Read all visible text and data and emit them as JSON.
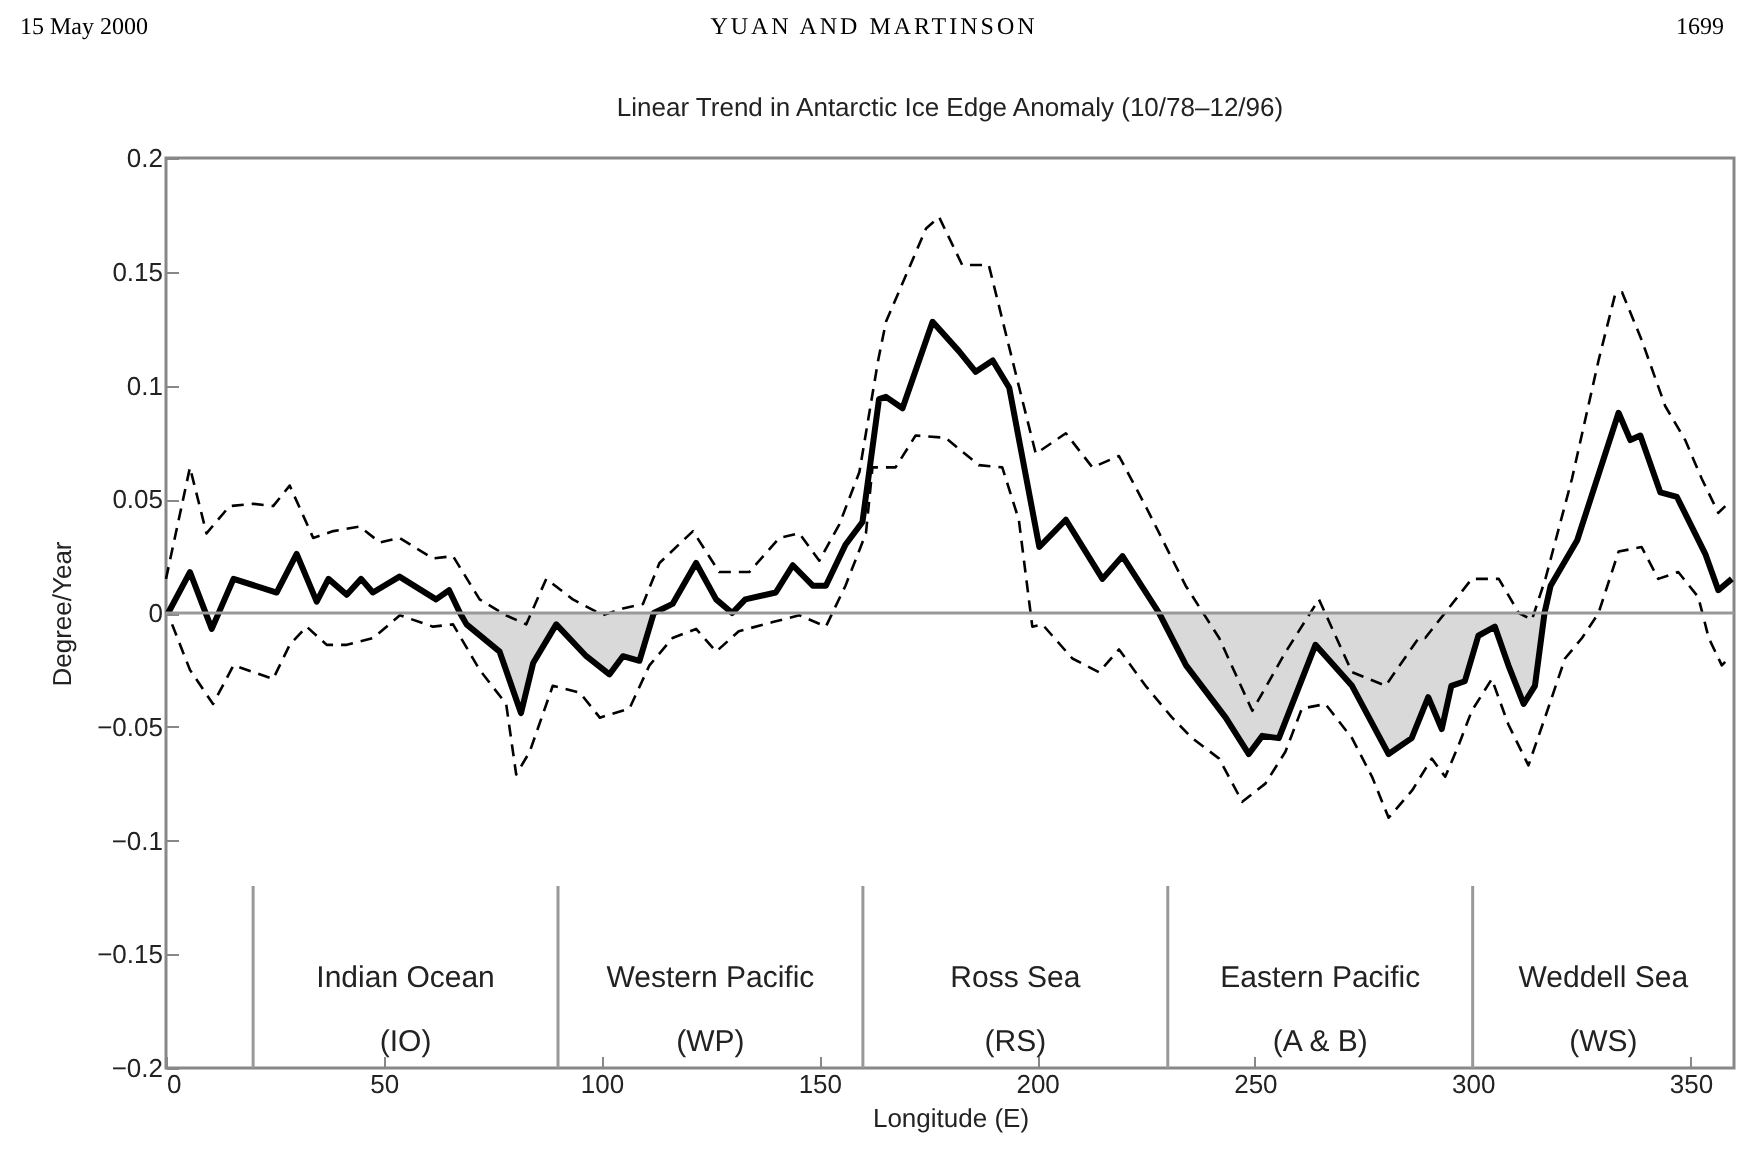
{
  "chart_data": {
    "type": "line",
    "title": "Linear Trend in Antarctic Ice Edge Anomaly (10/78–12/96)",
    "xlabel": "Longitude (E)",
    "ylabel": "Degree/Year",
    "xlim": [
      0,
      360
    ],
    "xticks": [
      0,
      50,
      100,
      150,
      200,
      250,
      300,
      350
    ],
    "ylim": [
      -0.2,
      0.2
    ],
    "yticks": [
      -0.2,
      -0.15,
      -0.1,
      -0.05,
      0,
      0.05,
      0.1,
      0.15,
      0.2
    ],
    "grid": false,
    "ref_lines": [
      {
        "axis": "y",
        "value": 0,
        "color": "#999999"
      }
    ],
    "series": [
      {
        "type": "area",
        "color": "#d9d9d9",
        "x": [
          67.5,
          69,
          76.6,
          81.5,
          84.3,
          89.6,
          96.5,
          101.8,
          104.9,
          108.7,
          112,
          228,
          234.2,
          243.3,
          248.6,
          251.7,
          255.5,
          263.9,
          272.3,
          280.7,
          286,
          289.8,
          292.9,
          295.1,
          298.2,
          301.3,
          305.1,
          308.2,
          311.7,
          314.3,
          316.5
        ],
        "values": [
          0,
          -0.005,
          -0.017,
          -0.044,
          -0.022,
          -0.005,
          -0.019,
          -0.027,
          -0.019,
          -0.021,
          0,
          0,
          -0.023,
          -0.046,
          -0.062,
          -0.054,
          -0.055,
          -0.014,
          -0.032,
          -0.062,
          -0.055,
          -0.037,
          -0.051,
          -0.032,
          -0.03,
          -0.01,
          -0.006,
          -0.023,
          -0.04,
          -0.032,
          0
        ]
      },
      {
        "color": "#000000",
        "line_style": "dashed",
        "x": [
          0,
          5.5,
          9.3,
          14.6,
          20,
          24.6,
          28.4,
          33.8,
          38.4,
          44.5,
          49.1,
          53.6,
          61.3,
          65.9,
          72,
          78,
          82.7,
          87.3,
          93.4,
          100.3,
          104.9,
          109.5,
          113.3,
          121,
          127,
          133.9,
          140.8,
          145.4,
          150,
          154.6,
          159.2,
          163.5,
          165.3,
          174.5,
          177.5,
          182.8,
          188.9,
          195.9,
          199.7,
          206.6,
          212.7,
          218.8,
          224.9,
          234.1,
          241.8,
          249.4,
          257.1,
          264.7,
          272.3,
          280,
          287.6,
          289.1,
          299.8,
          306,
          310.6,
          313.6,
          316.7,
          322.8,
          328.9,
          332.7,
          334.3,
          338.8,
          344.2,
          348.8,
          352.6,
          356.4,
          358
        ],
        "values": [
          0.015,
          0.064,
          0.035,
          0.047,
          0.048,
          0.047,
          0.056,
          0.033,
          0.036,
          0.038,
          0.031,
          0.033,
          0.024,
          0.025,
          0.006,
          -0.001,
          -0.005,
          0.015,
          0.006,
          -0.001,
          0.002,
          0.004,
          0.022,
          0.036,
          0.018,
          0.018,
          0.033,
          0.035,
          0.023,
          0.039,
          0.062,
          0.111,
          0.128,
          0.169,
          0.174,
          0.153,
          0.153,
          0.099,
          0.07,
          0.079,
          0.064,
          0.069,
          0.047,
          0.012,
          -0.011,
          -0.043,
          -0.017,
          0.006,
          -0.026,
          -0.032,
          -0.011,
          -0.011,
          0.015,
          0.015,
          0,
          -0.003,
          0.015,
          0.059,
          0.111,
          0.14,
          0.141,
          0.12,
          0.091,
          0.076,
          0.059,
          0.044,
          0.047
        ]
      },
      {
        "color": "#000000",
        "line_style": "dashed",
        "x": [
          1.4,
          5.5,
          10.8,
          15.5,
          24.6,
          28.4,
          32.3,
          36.9,
          41.5,
          47.6,
          53.7,
          61.3,
          65.9,
          72,
          78.1,
          80.4,
          83.5,
          88.8,
          95,
          99.6,
          106.4,
          111,
          116.3,
          121.7,
          126.3,
          131.5,
          139.3,
          145.4,
          151.5,
          156,
          160.7,
          162.2,
          167.5,
          172.1,
          179,
          186.6,
          192,
          195.8,
          198.9,
          201.2,
          208.1,
          214.2,
          218.8,
          224.9,
          231,
          235.6,
          241.8,
          247.1,
          252.4,
          257,
          260.8,
          266.2,
          272.3,
          276.9,
          280.7,
          286.1,
          290.6,
          293.7,
          296.8,
          299.8,
          304.4,
          308.2,
          312.8,
          316.6,
          321.2,
          325.1,
          328.9,
          333.5,
          338.8,
          342.6,
          347.2,
          351.8,
          354.2,
          357.2,
          358.7
        ],
        "values": [
          -0.005,
          -0.025,
          -0.04,
          -0.023,
          -0.029,
          -0.014,
          -0.006,
          -0.014,
          -0.014,
          -0.011,
          -0.001,
          -0.006,
          -0.005,
          -0.025,
          -0.04,
          -0.071,
          -0.061,
          -0.032,
          -0.035,
          -0.046,
          -0.042,
          -0.023,
          -0.011,
          -0.007,
          -0.017,
          -0.008,
          -0.004,
          -0.001,
          -0.006,
          0.012,
          0.035,
          0.064,
          0.064,
          0.078,
          0.077,
          0.065,
          0.064,
          0.041,
          -0.006,
          -0.005,
          -0.02,
          -0.026,
          -0.016,
          -0.032,
          -0.046,
          -0.055,
          -0.064,
          -0.083,
          -0.075,
          -0.061,
          -0.042,
          -0.04,
          -0.055,
          -0.072,
          -0.09,
          -0.078,
          -0.064,
          -0.072,
          -0.058,
          -0.043,
          -0.029,
          -0.049,
          -0.067,
          -0.046,
          -0.02,
          -0.011,
          0,
          0.027,
          0.029,
          0.015,
          0.018,
          0.007,
          -0.011,
          -0.023,
          -0.02
        ]
      },
      {
        "color": "#000000",
        "line_style": "solid",
        "x": [
          0.5,
          5.5,
          10.5,
          15.5,
          25.4,
          30,
          34.6,
          37.3,
          41.5,
          44.8,
          47.5,
          53.6,
          62,
          65,
          67.5,
          69,
          76.6,
          81.5,
          84.3,
          89.6,
          96.5,
          101.8,
          104.9,
          108.7,
          112,
          116.3,
          121.7,
          126.3,
          130,
          133,
          140,
          143.9,
          148.5,
          151.5,
          156,
          159.9,
          163.7,
          165.3,
          169.1,
          176,
          182.1,
          185.9,
          189.8,
          193.6,
          200.5,
          206.6,
          215,
          219.6,
          228,
          234.2,
          243.3,
          248.6,
          251.7,
          255.5,
          263.9,
          272.3,
          280.7,
          286,
          289.8,
          292.9,
          295.1,
          298.2,
          301.3,
          305.1,
          308.2,
          311.7,
          314.3,
          316.5,
          317.9,
          324,
          333.5,
          336.2,
          338.5,
          343.1,
          346.9,
          353.4,
          356.4,
          359.5
        ],
        "values": [
          0,
          0.018,
          -0.007,
          0.015,
          0.009,
          0.026,
          0.005,
          0.015,
          0.008,
          0.015,
          0.009,
          0.016,
          0.006,
          0.01,
          0,
          -0.005,
          -0.017,
          -0.044,
          -0.022,
          -0.005,
          -0.019,
          -0.027,
          -0.019,
          -0.021,
          0,
          0.004,
          0.022,
          0.006,
          0,
          0.006,
          0.009,
          0.021,
          0.012,
          0.012,
          0.03,
          0.04,
          0.094,
          0.095,
          0.09,
          0.128,
          0.115,
          0.106,
          0.111,
          0.099,
          0.029,
          0.041,
          0.015,
          0.025,
          0,
          -0.023,
          -0.046,
          -0.062,
          -0.054,
          -0.055,
          -0.014,
          -0.032,
          -0.062,
          -0.055,
          -0.037,
          -0.051,
          -0.032,
          -0.03,
          -0.01,
          -0.006,
          -0.023,
          -0.04,
          -0.032,
          0,
          0.012,
          0.032,
          0.088,
          0.076,
          0.078,
          0.053,
          0.051,
          0.026,
          0.01,
          0.015
        ]
      },
      {
        "type": "line",
        "color": "#999999",
        "line_style": "solid",
        "x": [
          20,
          20
        ],
        "values": [
          -0.2,
          -0.12
        ]
      },
      {
        "type": "line",
        "color": "#999999",
        "line_style": "solid",
        "x": [
          90,
          90
        ],
        "values": [
          -0.2,
          -0.12
        ]
      },
      {
        "type": "line",
        "color": "#999999",
        "line_style": "solid",
        "x": [
          160,
          160
        ],
        "values": [
          -0.2,
          -0.12
        ]
      },
      {
        "type": "line",
        "color": "#999999",
        "line_style": "solid",
        "x": [
          230,
          230
        ],
        "values": [
          -0.2,
          -0.12
        ]
      },
      {
        "type": "line",
        "color": "#999999",
        "line_style": "solid",
        "x": [
          300,
          300
        ],
        "values": [
          -0.2,
          -0.12
        ]
      }
    ],
    "annotations": [
      "15 May 2000",
      "YUAN AND MARTINSON",
      "1699",
      "Indian Ocean\n(IO)",
      "Western Pacific\n(WP)",
      "Ross Sea\n(RS)",
      "Eastern Pacific\n(A & B)",
      "Weddell Sea\n(WS)"
    ]
  }
}
